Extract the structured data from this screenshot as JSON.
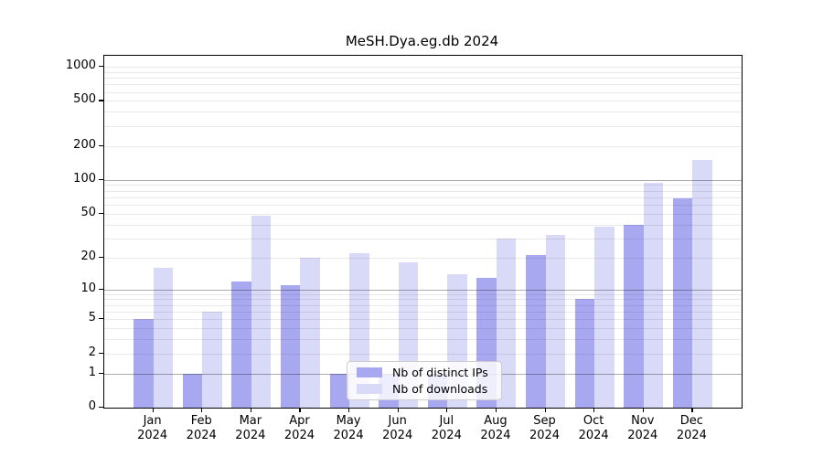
{
  "title": "MeSH.Dya.eg.db 2024",
  "chart_data": {
    "type": "bar",
    "categories": [
      "Jan",
      "Feb",
      "Mar",
      "Apr",
      "May",
      "Jun",
      "Jul",
      "Aug",
      "Sep",
      "Oct",
      "Nov",
      "Dec"
    ],
    "category_year": "2024",
    "series": [
      {
        "name": "Nb of distinct IPs",
        "color": "#a8a8f0",
        "values": [
          5,
          1,
          12,
          11,
          1,
          1,
          1,
          13,
          21,
          8,
          40,
          68
        ]
      },
      {
        "name": "Nb of downloads",
        "color": "#d9d9f8",
        "values": [
          16,
          6,
          48,
          20,
          22,
          18,
          14,
          30,
          32,
          38,
          95,
          150
        ]
      }
    ],
    "title": "MeSH.Dya.eg.db 2024",
    "xlabel": "",
    "ylabel": "",
    "yscale": "log1p",
    "y_ticks": [
      0,
      1,
      2,
      5,
      10,
      20,
      50,
      100,
      200,
      500,
      1000
    ],
    "y_major_gridlines": [
      1,
      10,
      100
    ],
    "ylim": [
      0,
      1100
    ],
    "grid": true,
    "legend_position": "inside-bottom-center"
  }
}
